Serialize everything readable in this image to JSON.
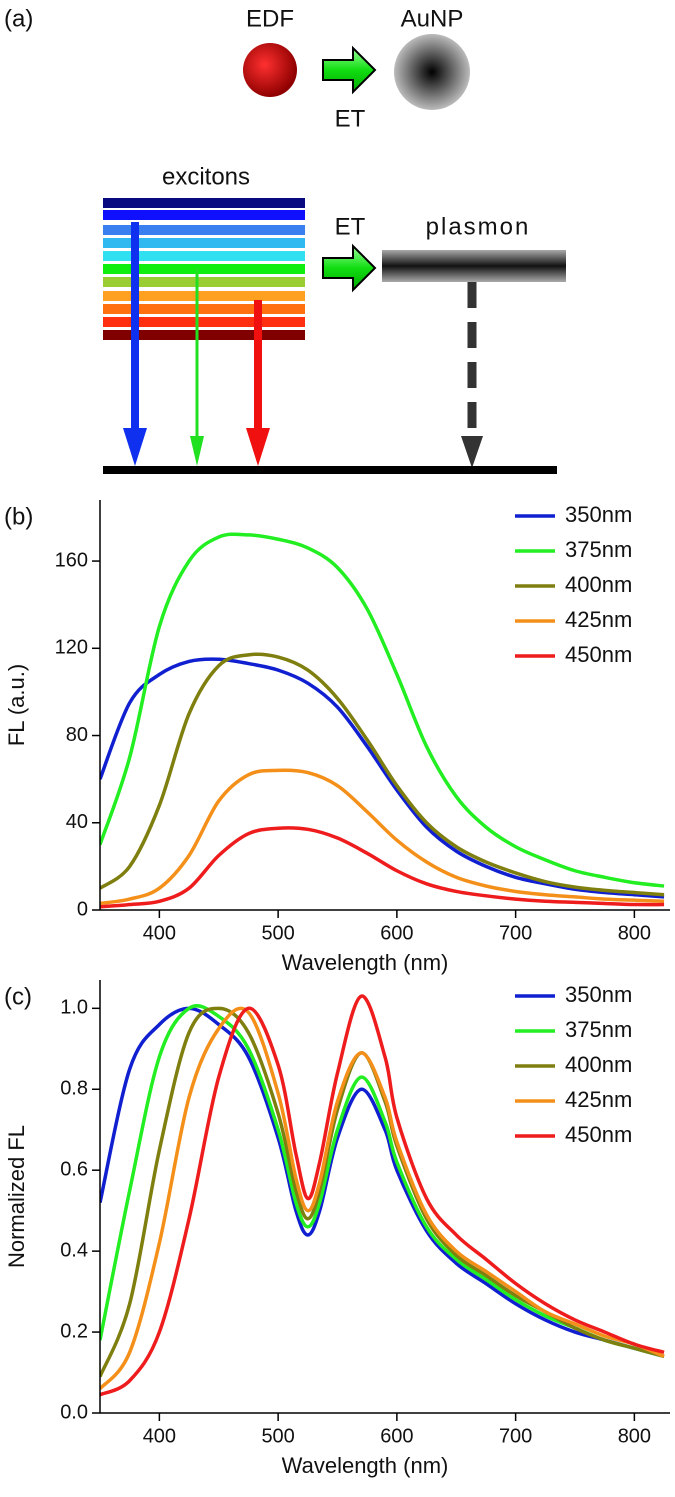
{
  "diagram": {
    "label": "(a)",
    "edf": "EDF",
    "aunp": "AuNP",
    "et_top": "ET",
    "excitons": "excitons",
    "et_bottom": "ET",
    "plasmon": "plasmon"
  },
  "chart_data": [
    {
      "type": "line",
      "label": "(b)",
      "ylabel": "FL (a.u.)",
      "xlabel": "Wavelength (nm)",
      "xlim": [
        350,
        830
      ],
      "xticks": [
        400,
        500,
        600,
        700,
        800
      ],
      "ylim": [
        0,
        188
      ],
      "yticks": [
        0,
        40,
        80,
        120,
        160
      ],
      "legend": "upper right",
      "x": [
        350,
        375,
        400,
        425,
        450,
        475,
        500,
        525,
        550,
        575,
        600,
        625,
        650,
        675,
        700,
        725,
        750,
        775,
        800,
        825
      ],
      "series": [
        {
          "name": "350nm",
          "color": "#1020d0",
          "values": [
            60,
            95,
            108,
            114,
            115,
            113,
            110,
            104,
            93,
            75,
            55,
            38,
            27,
            20,
            15,
            12,
            9.5,
            8,
            7,
            6
          ]
        },
        {
          "name": "375nm",
          "color": "#22ee22",
          "values": [
            30,
            70,
            130,
            160,
            171,
            172,
            170,
            166,
            157,
            138,
            108,
            75,
            52,
            38,
            29,
            23,
            18,
            15,
            12.5,
            11
          ]
        },
        {
          "name": "400nm",
          "color": "#7f7f10",
          "values": [
            10,
            20,
            48,
            90,
            112,
            117,
            116,
            110,
            97,
            78,
            57,
            40,
            29,
            22,
            17,
            13,
            10.5,
            9,
            8,
            7
          ]
        },
        {
          "name": "425nm",
          "color": "#f4901a",
          "values": [
            3,
            5,
            10,
            25,
            50,
            62,
            64,
            63,
            57,
            45,
            32,
            22,
            15,
            11,
            8.5,
            7,
            6,
            5,
            4.5,
            4
          ]
        },
        {
          "name": "450nm",
          "color": "#ee1c1c",
          "values": [
            1.5,
            2.5,
            4,
            10,
            25,
            35,
            37.5,
            37,
            33,
            26,
            18,
            12,
            8.5,
            6.5,
            5,
            4,
            3.5,
            3,
            2.5,
            2.5
          ]
        }
      ]
    },
    {
      "type": "line",
      "label": "(c)",
      "ylabel": "Normalized FL",
      "xlabel": "Wavelength (nm)",
      "xlim": [
        350,
        830
      ],
      "xticks": [
        400,
        500,
        600,
        700,
        800
      ],
      "ylim": [
        0,
        1.07
      ],
      "yticks": [
        {
          "value": 0,
          "label": "0.0"
        },
        0.2,
        0.4,
        0.6,
        0.8,
        {
          "value": 1,
          "label": "1.0"
        }
      ],
      "legend": "upper right",
      "x": [
        350,
        375,
        400,
        425,
        450,
        475,
        500,
        515,
        525,
        535,
        550,
        570,
        590,
        600,
        625,
        650,
        675,
        700,
        725,
        750,
        775,
        800,
        825
      ],
      "series": [
        {
          "name": "350nm",
          "color": "#1020d0",
          "values": [
            0.52,
            0.85,
            0.96,
            1.0,
            0.96,
            0.88,
            0.68,
            0.5,
            0.44,
            0.5,
            0.68,
            0.8,
            0.7,
            0.6,
            0.45,
            0.37,
            0.32,
            0.27,
            0.23,
            0.2,
            0.18,
            0.16,
            0.14
          ]
        },
        {
          "name": "375nm",
          "color": "#22ee22",
          "values": [
            0.18,
            0.55,
            0.88,
            1.0,
            0.98,
            0.9,
            0.7,
            0.52,
            0.46,
            0.52,
            0.7,
            0.83,
            0.72,
            0.62,
            0.46,
            0.38,
            0.33,
            0.28,
            0.24,
            0.21,
            0.18,
            0.16,
            0.14
          ]
        },
        {
          "name": "400nm",
          "color": "#7f7f10",
          "values": [
            0.09,
            0.27,
            0.65,
            0.94,
            1.0,
            0.94,
            0.74,
            0.55,
            0.48,
            0.55,
            0.75,
            0.89,
            0.77,
            0.66,
            0.48,
            0.39,
            0.34,
            0.29,
            0.25,
            0.21,
            0.18,
            0.16,
            0.14
          ]
        },
        {
          "name": "425nm",
          "color": "#f4901a",
          "values": [
            0.06,
            0.15,
            0.42,
            0.78,
            0.95,
            0.99,
            0.79,
            0.58,
            0.5,
            0.57,
            0.77,
            0.89,
            0.78,
            0.67,
            0.49,
            0.4,
            0.35,
            0.3,
            0.25,
            0.22,
            0.19,
            0.17,
            0.14
          ]
        },
        {
          "name": "450nm",
          "color": "#ee1c1c",
          "values": [
            0.045,
            0.08,
            0.2,
            0.48,
            0.83,
            1.0,
            0.86,
            0.64,
            0.53,
            0.62,
            0.84,
            1.03,
            0.88,
            0.73,
            0.53,
            0.44,
            0.38,
            0.32,
            0.27,
            0.23,
            0.2,
            0.17,
            0.15
          ]
        }
      ]
    }
  ]
}
